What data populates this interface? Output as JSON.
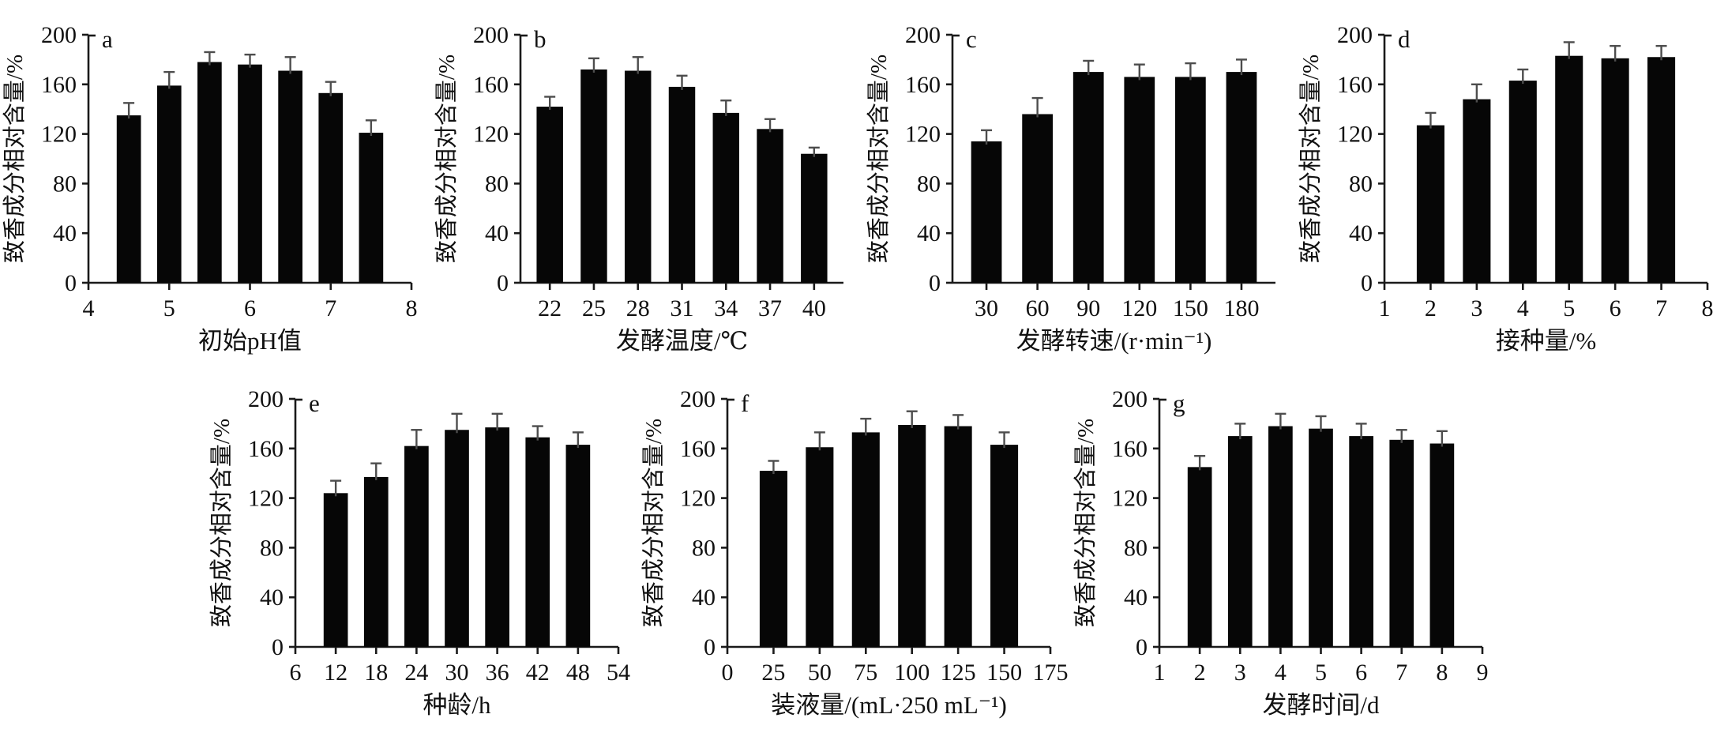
{
  "figure": {
    "background": "#ffffff",
    "bar_color": "#060606",
    "error_color": "#4d4d4d",
    "axis_color": "#1a1a1a",
    "text_color": "#111111",
    "y_axis_label": "致香成分相对含量/%",
    "y_ticks": [
      0,
      40,
      80,
      120,
      160,
      200
    ],
    "ylim": [
      0,
      200
    ]
  },
  "chart_data": [
    {
      "type": "bar",
      "panel": "a",
      "xlabel": "初始pH值",
      "ylabel": "致香成分相对含量/%",
      "ylim": [
        0,
        200
      ],
      "y_ticks": [
        0,
        40,
        80,
        120,
        160,
        200
      ],
      "x_range": [
        4,
        8
      ],
      "x_ticks": [
        4,
        5,
        6,
        7,
        8
      ],
      "x": [
        4.5,
        5,
        5.5,
        6,
        6.5,
        7,
        7.5
      ],
      "values": [
        135,
        159,
        178,
        176,
        171,
        153,
        121
      ],
      "errors": [
        10,
        11,
        8,
        8,
        11,
        9,
        10
      ],
      "grid": false,
      "legend": "none"
    },
    {
      "type": "bar",
      "panel": "b",
      "xlabel": "发酵温度/℃",
      "ylabel": "致香成分相对含量/%",
      "ylim": [
        0,
        200
      ],
      "y_ticks": [
        0,
        40,
        80,
        120,
        160,
        200
      ],
      "x_range": [
        20,
        42
      ],
      "x_ticks": [
        22,
        25,
        28,
        31,
        34,
        37,
        40
      ],
      "x": [
        22,
        25,
        28,
        31,
        34,
        37,
        40
      ],
      "values": [
        142,
        172,
        171,
        158,
        137,
        124,
        104
      ],
      "errors": [
        8,
        9,
        11,
        9,
        10,
        8,
        5
      ],
      "grid": false,
      "legend": "none"
    },
    {
      "type": "bar",
      "panel": "c",
      "xlabel": "发酵转速/(r·min⁻¹)",
      "ylabel": "致香成分相对含量/%",
      "ylim": [
        0,
        200
      ],
      "y_ticks": [
        0,
        40,
        80,
        120,
        160,
        200
      ],
      "x_range": [
        10,
        200
      ],
      "x_ticks": [
        30,
        60,
        90,
        120,
        150,
        180
      ],
      "x": [
        30,
        60,
        90,
        120,
        150,
        180
      ],
      "values": [
        114,
        136,
        170,
        166,
        166,
        170
      ],
      "errors": [
        9,
        13,
        9,
        10,
        11,
        10
      ],
      "grid": false,
      "legend": "none"
    },
    {
      "type": "bar",
      "panel": "d",
      "xlabel": "接种量/%",
      "ylabel": "致香成分相对含量/%",
      "ylim": [
        0,
        200
      ],
      "y_ticks": [
        0,
        40,
        80,
        120,
        160,
        200
      ],
      "x_range": [
        1,
        8
      ],
      "x_ticks": [
        1,
        2,
        3,
        4,
        5,
        6,
        7,
        8
      ],
      "x": [
        2,
        3,
        4,
        5,
        6,
        7
      ],
      "values": [
        127,
        148,
        163,
        183,
        181,
        182
      ],
      "errors": [
        10,
        12,
        9,
        11,
        10,
        9
      ],
      "grid": false,
      "legend": "none"
    },
    {
      "type": "bar",
      "panel": "e",
      "xlabel": "种龄/h",
      "ylabel": "致香成分相对含量/%",
      "ylim": [
        0,
        200
      ],
      "y_ticks": [
        0,
        40,
        80,
        120,
        160,
        200
      ],
      "x_range": [
        6,
        54
      ],
      "x_ticks": [
        6,
        12,
        18,
        24,
        30,
        36,
        42,
        48,
        54
      ],
      "x": [
        12,
        18,
        24,
        30,
        36,
        42,
        48
      ],
      "values": [
        124,
        137,
        162,
        175,
        177,
        169,
        163
      ],
      "errors": [
        10,
        11,
        13,
        13,
        11,
        9,
        10
      ],
      "grid": false,
      "legend": "none"
    },
    {
      "type": "bar",
      "panel": "f",
      "xlabel": "装液量/(mL·250 mL⁻¹)",
      "ylabel": "致香成分相对含量/%",
      "ylim": [
        0,
        200
      ],
      "y_ticks": [
        0,
        40,
        80,
        120,
        160,
        200
      ],
      "x_range": [
        0,
        175
      ],
      "x_ticks": [
        0,
        25,
        50,
        75,
        100,
        125,
        150,
        175
      ],
      "x": [
        25,
        50,
        75,
        100,
        125,
        150
      ],
      "values": [
        142,
        161,
        173,
        179,
        178,
        163
      ],
      "errors": [
        8,
        12,
        11,
        11,
        9,
        10
      ],
      "grid": false,
      "legend": "none"
    },
    {
      "type": "bar",
      "panel": "g",
      "xlabel": "发酵时间/d",
      "ylabel": "致香成分相对含量/%",
      "ylim": [
        0,
        200
      ],
      "y_ticks": [
        0,
        40,
        80,
        120,
        160,
        200
      ],
      "x_range": [
        1,
        9
      ],
      "x_ticks": [
        1,
        2,
        3,
        4,
        5,
        6,
        7,
        8,
        9
      ],
      "x": [
        2,
        3,
        4,
        5,
        6,
        7,
        8
      ],
      "values": [
        145,
        170,
        178,
        176,
        170,
        167,
        164
      ],
      "errors": [
        9,
        10,
        10,
        10,
        10,
        8,
        10
      ],
      "grid": false,
      "legend": "none"
    }
  ]
}
